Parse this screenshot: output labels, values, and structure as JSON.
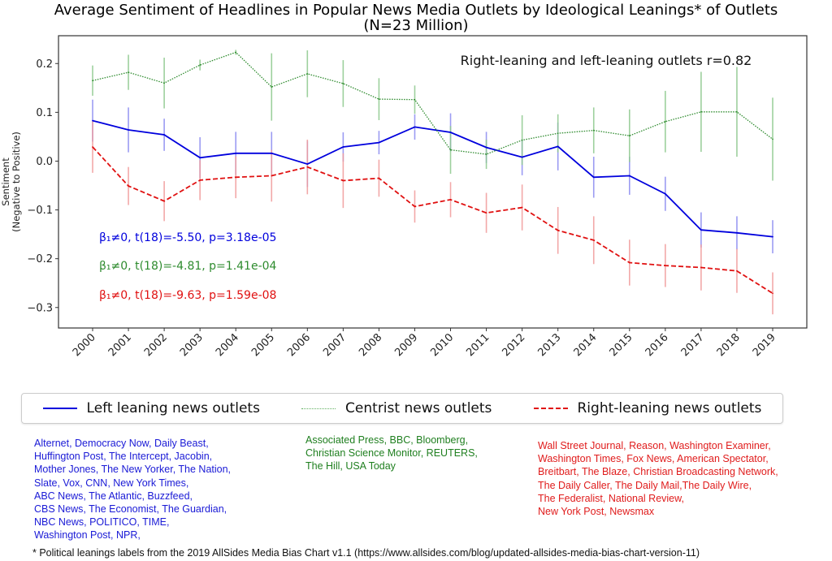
{
  "chart_data": {
    "type": "line",
    "title": "Average Sentiment of Headlines in Popular News Media Outlets by Ideological Leanings* of Outlets",
    "subtitle": "(N=23 Million)",
    "xlabel": "",
    "ylabel": "Sentiment\n(Negative to Positive)",
    "ylabel_lines": [
      "Sentiment",
      "(Negative to Positive)"
    ],
    "x": [
      2000,
      2001,
      2002,
      2003,
      2004,
      2005,
      2006,
      2007,
      2008,
      2009,
      2010,
      2011,
      2012,
      2013,
      2014,
      2015,
      2016,
      2017,
      2018,
      2019
    ],
    "ylim": [
      -0.342,
      0.257
    ],
    "yticks": [
      0.2,
      0.1,
      0.0,
      -0.1,
      -0.2,
      -0.3
    ],
    "ytick_labels": [
      "0.2",
      "0.1",
      "0.0",
      "−0.1",
      "−0.2",
      "−0.3"
    ],
    "grid": false,
    "legend_placement": "below",
    "series": [
      {
        "name": "Left leaning news outlets",
        "color": "#0000dd",
        "style": "solid",
        "values": [
          0.083,
          0.064,
          0.054,
          0.007,
          0.016,
          0.016,
          -0.006,
          0.029,
          0.038,
          0.07,
          0.059,
          0.028,
          0.008,
          0.03,
          -0.033,
          -0.03,
          -0.067,
          -0.141,
          -0.147,
          -0.155
        ],
        "errors": [
          0.043,
          0.046,
          0.033,
          0.042,
          0.044,
          0.044,
          0.047,
          0.03,
          0.024,
          0.026,
          0.039,
          0.032,
          0.037,
          0.049,
          0.042,
          0.039,
          0.035,
          0.036,
          0.034,
          0.034
        ]
      },
      {
        "name": "Centrist news outlets",
        "color": "#2e8b2e",
        "style": "dotted",
        "values": [
          0.165,
          0.182,
          0.16,
          0.197,
          0.223,
          0.152,
          0.179,
          0.159,
          0.127,
          0.126,
          0.023,
          0.014,
          0.043,
          0.057,
          0.063,
          0.052,
          0.081,
          0.101,
          0.101,
          0.045
        ],
        "errors": [
          0.031,
          0.036,
          0.052,
          0.011,
          0.005,
          0.069,
          0.048,
          0.048,
          0.043,
          0.029,
          0.049,
          0.03,
          0.051,
          0.039,
          0.047,
          0.054,
          0.063,
          0.082,
          0.092,
          0.085
        ]
      },
      {
        "name": "Right-leaning news outlets",
        "color": "#e01010",
        "style": "dashed",
        "values": [
          0.029,
          -0.051,
          -0.082,
          -0.039,
          -0.033,
          -0.03,
          -0.012,
          -0.04,
          -0.035,
          -0.093,
          -0.079,
          -0.106,
          -0.095,
          -0.142,
          -0.162,
          -0.208,
          -0.214,
          -0.218,
          -0.225,
          -0.271
        ],
        "errors": [
          0.053,
          0.039,
          0.041,
          0.041,
          0.043,
          0.053,
          0.056,
          0.056,
          0.038,
          0.033,
          0.036,
          0.041,
          0.047,
          0.048,
          0.049,
          0.047,
          0.044,
          0.047,
          0.045,
          0.043
        ]
      }
    ],
    "annotations": {
      "correlation": "Right-leaning and left-leaning outlets r=0.82",
      "stats": [
        {
          "text": "β₁≠0, t(18)=-5.50, p=3.18e-05",
          "color": "#0000dd"
        },
        {
          "text": "β₁≠0, t(18)=-4.81, p=1.41e-04",
          "color": "#2e8b2e"
        },
        {
          "text": "β₁≠0, t(18)=-9.63, p=1.59e-08",
          "color": "#e01010"
        }
      ]
    }
  },
  "outlet_lists": {
    "left": "Alternet, Democracy Now, Daily Beast,\nHuffington Post, The Intercept, Jacobin,\nMother Jones, The New Yorker, The Nation,\nSlate, Vox, CNN, New York Times,\nABC News, The Atlantic, Buzzfeed,\nCBS News, The Economist, The Guardian,\nNBC News, POLITICO, TIME,\nWashington Post, NPR,",
    "centrist": "Associated Press, BBC, Bloomberg,\nChristian Science Monitor, REUTERS,\nThe Hill, USA Today",
    "right": "Wall Street Journal, Reason, Washington Examiner,\nWashington Times, Fox News, American Spectator,\nBreitbart, The Blaze, Christian Broadcasting Network,\nThe Daily Caller, The Daily Mail,The Daily Wire,\nThe Federalist, National Review,\nNew York Post, Newsmax"
  },
  "footnote": "* Political leanings labels from the 2019 AllSides Media Bias Chart v1.1 (https://www.allsides.com/blog/updated-allsides-media-bias-chart-version-11)"
}
